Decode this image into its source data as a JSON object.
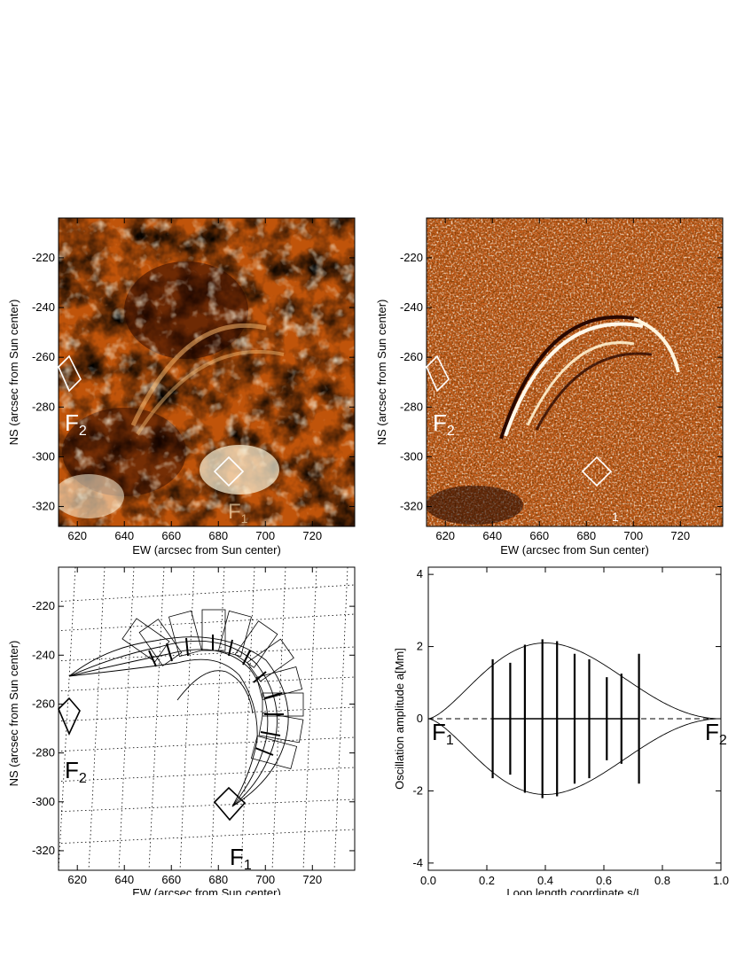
{
  "panels": {
    "top_left": {
      "xlabel": "EW (arcsec from Sun center)",
      "ylabel": "NS (arcsec from Sun center)",
      "xticks": [
        "620",
        "640",
        "660",
        "680",
        "700",
        "720"
      ],
      "yticks": [
        "-220",
        "-240",
        "-260",
        "-280",
        "-300",
        "-320"
      ],
      "footpoint_f2": {
        "letter": "F",
        "sub": "2"
      },
      "footpoint_f1": {
        "letter": "F",
        "sub": "1"
      }
    },
    "top_right": {
      "xlabel": "EW (arcsec from Sun center)",
      "ylabel": "NS (arcsec from Sun center)",
      "xticks": [
        "620",
        "640",
        "660",
        "680",
        "700",
        "720"
      ],
      "yticks": [
        "-220",
        "-240",
        "-260",
        "-280",
        "-300",
        "-320"
      ],
      "footpoint_f2": {
        "letter": "F",
        "sub": "2"
      },
      "footpoint_f1": {
        "letter": "",
        "sub": "1"
      }
    },
    "bottom_left": {
      "xlabel": "EW (arcsec from Sun center)",
      "ylabel": "NS (arcsec from Sun center)",
      "xticks": [
        "620",
        "640",
        "660",
        "680",
        "700",
        "720"
      ],
      "yticks": [
        "-220",
        "-240",
        "-260",
        "-280",
        "-300",
        "-320"
      ],
      "footpoint_f2": {
        "letter": "F",
        "sub": "2"
      },
      "footpoint_f1": {
        "letter": "F",
        "sub": "1"
      }
    }
  },
  "chart_data": {
    "type": "line",
    "xlabel": "Loop length coordinate s/L",
    "ylabel": "Oscillation amplitude  a[Mm]",
    "xlim": [
      0.0,
      1.0
    ],
    "ylim": [
      -4.2,
      4.2
    ],
    "xticks": [
      "0.0",
      "0.2",
      "0.4",
      "0.6",
      "0.8",
      "1.0"
    ],
    "yticks": [
      "4",
      "2",
      "0",
      "-2",
      "-4"
    ],
    "envelope_peak": 2.1,
    "envelope_peak_s": 0.4,
    "annotations": [
      {
        "letter": "F",
        "sub": "1",
        "s": 0.0
      },
      {
        "letter": "F",
        "sub": "2",
        "s": 1.0
      }
    ],
    "series": [
      {
        "s": [
          0.22,
          0.28,
          0.33,
          0.39,
          0.44,
          0.5,
          0.55,
          0.61,
          0.66,
          0.72
        ],
        "amplitude": [
          1.65,
          1.55,
          2.05,
          2.2,
          2.15,
          1.8,
          1.65,
          1.15,
          1.25,
          1.8
        ]
      }
    ]
  }
}
